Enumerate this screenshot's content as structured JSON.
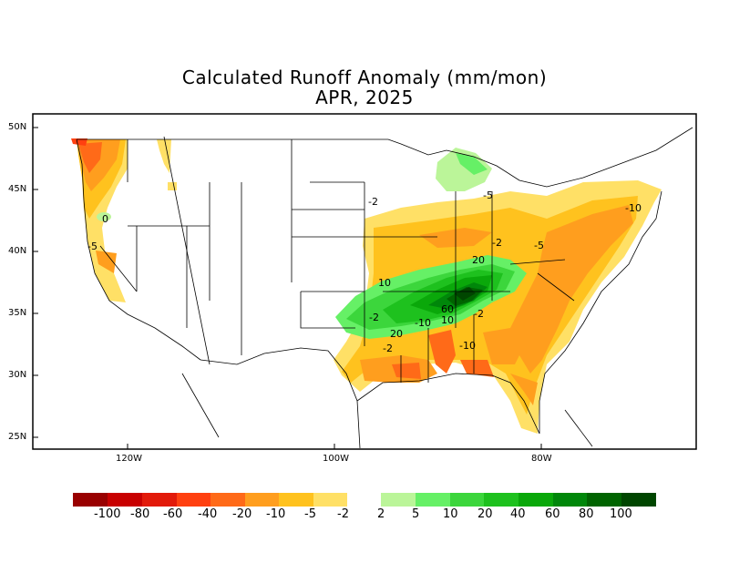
{
  "title": "Calculated Runoff Anomaly (mm/mon)",
  "subtitle": "APR, 2025",
  "lat_labels": [
    "50N",
    "45N",
    "40N",
    "35N",
    "30N",
    "25N"
  ],
  "lon_labels": [
    "120W",
    "100W",
    "80W"
  ],
  "colorbar": {
    "negative_colors": [
      "#990000",
      "#c80000",
      "#e21a0a",
      "#ff4010",
      "#ff6a18",
      "#ff9e1e",
      "#ffc21e",
      "#ffe066"
    ],
    "positive_colors": [
      "#bbf599",
      "#66f066",
      "#3cd63c",
      "#1ec11e",
      "#0aa80a",
      "#00870a",
      "#006400",
      "#004600"
    ],
    "labels": [
      "-100",
      "-80",
      "-60",
      "-40",
      "-20",
      "-10",
      "-5",
      "-2",
      "2",
      "5",
      "10",
      "20",
      "40",
      "60",
      "80",
      "100"
    ]
  },
  "contour_labels": [
    "-2",
    "-5",
    "-10",
    "-5",
    "-5",
    "-2",
    "-2",
    "-10",
    "10",
    "20",
    "20",
    "60",
    "10",
    "-2",
    "-10",
    "-2",
    "0"
  ]
}
